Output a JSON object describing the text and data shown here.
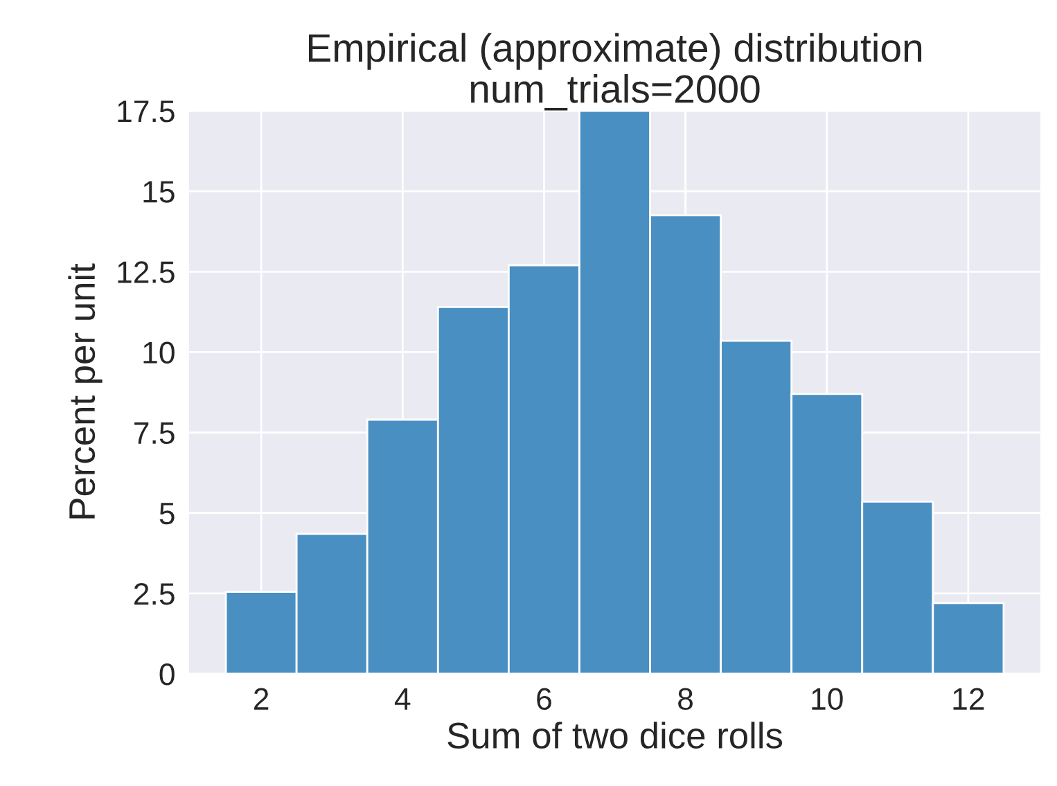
{
  "chart_data": {
    "type": "histogram",
    "title": "Empirical (approximate) distribution\nnum_trials=2000",
    "xlabel": "Sum of two dice rolls",
    "ylabel": "Percent per unit",
    "bins": [
      1.5,
      2.5,
      3.5,
      4.5,
      5.5,
      6.5,
      7.5,
      8.5,
      9.5,
      10.5,
      11.5,
      12.5
    ],
    "values": [
      2.55,
      4.35,
      7.9,
      11.4,
      12.7,
      17.5,
      14.25,
      10.35,
      8.7,
      5.35,
      2.2
    ],
    "color": "#4a8fc2",
    "xlim": [
      0.98,
      13.02
    ],
    "xticks": [
      2,
      4,
      6,
      8,
      10,
      12
    ],
    "ylim": [
      0,
      17.5
    ],
    "yticks": [
      0,
      2.5,
      5,
      7.5,
      10,
      12.5,
      15,
      17.5
    ],
    "grid": true
  }
}
